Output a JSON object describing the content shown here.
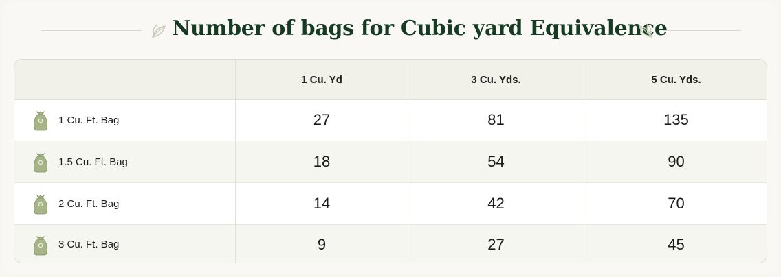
{
  "title": "Number of bags for Cubic yard Equivalence",
  "icons": {
    "decoration": "leaf-icon",
    "row": "bag-icon"
  },
  "colors": {
    "title": "#173a23",
    "bag": "#a6b487",
    "leaf": "#c9cbb9"
  },
  "table": {
    "headers": [
      "",
      "1 Cu. Yd",
      "3 Cu. Yds.",
      "5 Cu. Yds."
    ],
    "rows": [
      {
        "label": "1 Cu. Ft. Bag",
        "values": [
          "27",
          "81",
          "135"
        ]
      },
      {
        "label": "1.5 Cu. Ft. Bag",
        "values": [
          "18",
          "54",
          "90"
        ]
      },
      {
        "label": "2 Cu. Ft. Bag",
        "values": [
          "14",
          "42",
          "70"
        ]
      },
      {
        "label": "3 Cu. Ft. Bag",
        "values": [
          "9",
          "27",
          "45"
        ]
      }
    ]
  }
}
